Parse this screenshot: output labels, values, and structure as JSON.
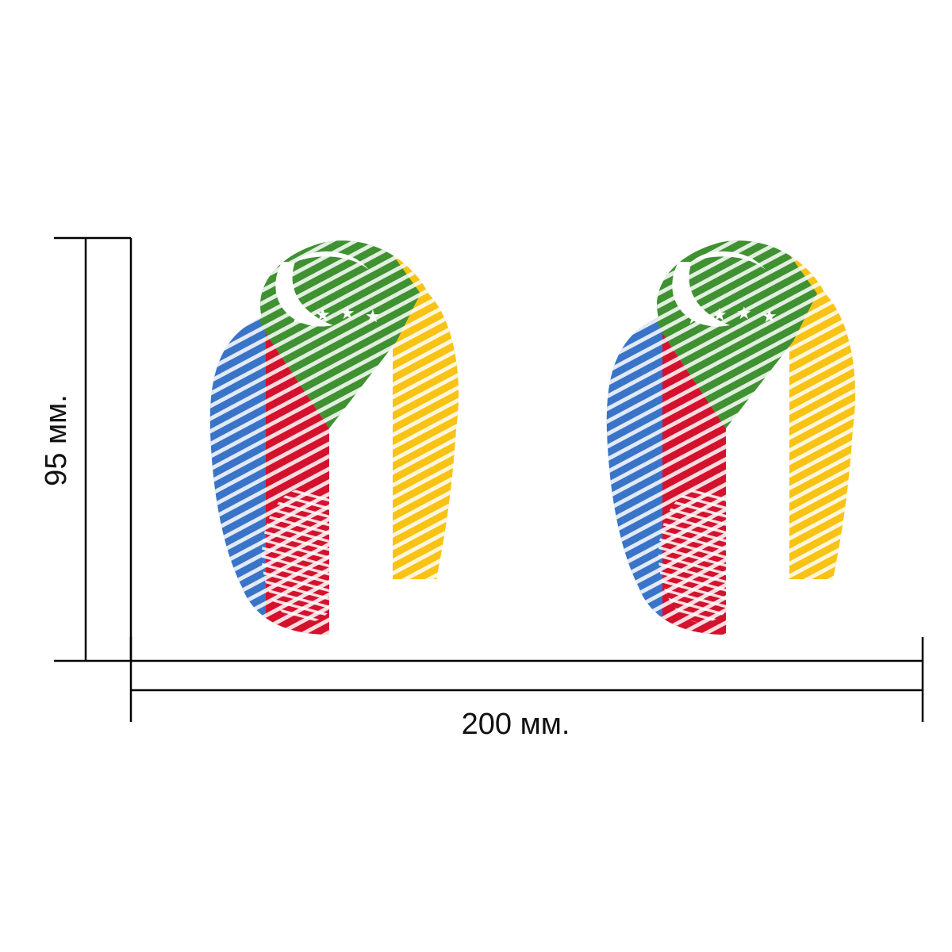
{
  "dimensions": {
    "height_label": "95 мм.",
    "width_label": "200 мм."
  },
  "artwork": {
    "description_name": "fingerprint-flag-sticker",
    "count": 2,
    "colors": {
      "blue": "#3a74c8",
      "red": "#d4122e",
      "green": "#3f9131",
      "yellow": "#f8c315",
      "white": "#ffffff",
      "line": "#000000"
    }
  }
}
